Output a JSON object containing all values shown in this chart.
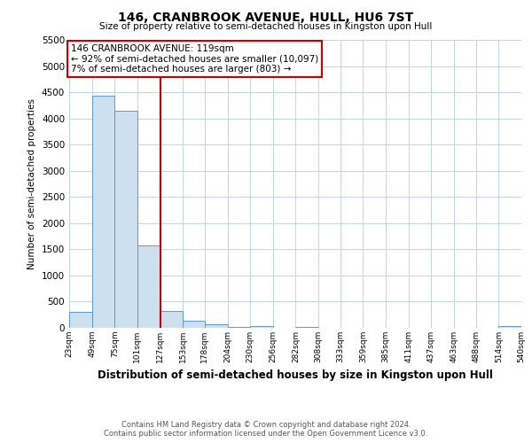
{
  "title": "146, CRANBROOK AVENUE, HULL, HU6 7ST",
  "subtitle": "Size of property relative to semi-detached houses in Kingston upon Hull",
  "xlabel": "Distribution of semi-detached houses by size in Kingston upon Hull",
  "ylabel": "Number of semi-detached properties",
  "bin_edges": [
    23,
    49,
    75,
    101,
    127,
    153,
    178,
    204,
    230,
    256,
    282,
    308,
    333,
    359,
    385,
    411,
    437,
    463,
    488,
    514,
    540
  ],
  "bar_heights": [
    300,
    4430,
    4150,
    1570,
    330,
    130,
    70,
    20,
    40,
    0,
    20,
    0,
    0,
    0,
    0,
    0,
    0,
    0,
    0,
    40
  ],
  "bar_color": "#cce0f0",
  "bar_edge_color": "#5b9bd5",
  "property_line_x": 127,
  "property_line_color": "#cc0000",
  "annotation_line1": "146 CRANBROOK AVENUE: 119sqm",
  "annotation_line2": "← 92% of semi-detached houses are smaller (10,097)",
  "annotation_line3": "7% of semi-detached houses are larger (803) →",
  "annotation_box_color": "#ffffff",
  "annotation_box_edge_color": "#cc0000",
  "ylim": [
    0,
    5500
  ],
  "yticks": [
    0,
    500,
    1000,
    1500,
    2000,
    2500,
    3000,
    3500,
    4000,
    4500,
    5000,
    5500
  ],
  "footer_line1": "Contains HM Land Registry data © Crown copyright and database right 2024.",
  "footer_line2": "Contains public sector information licensed under the Open Government Licence v3.0.",
  "bg_color": "#ffffff",
  "grid_color": "#c0d4e8"
}
